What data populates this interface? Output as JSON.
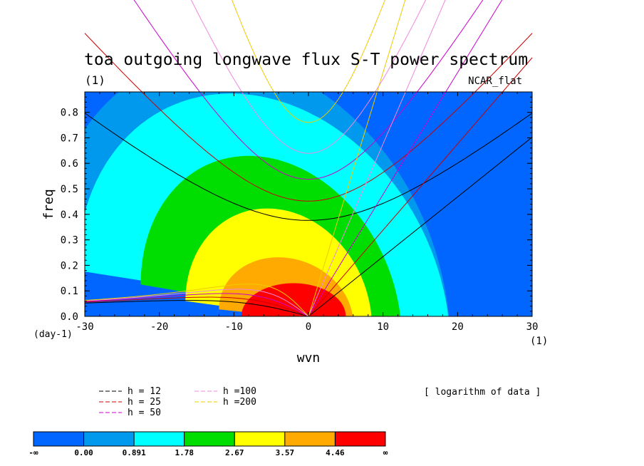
{
  "chart_data": {
    "type": "heatmap",
    "title": "toa outgoing longwave flux S-T power spectrum",
    "title_units": "(1)",
    "subtitle": "NCAR_flat",
    "xlabel": "wvn",
    "ylabel": "freq",
    "x_units": "(1)",
    "y_units": "(day-1)",
    "xlim": [
      -30,
      30
    ],
    "ylim": [
      0,
      0.88
    ],
    "x_ticks": [
      -30,
      -20,
      -10,
      0,
      10,
      20,
      30
    ],
    "x_tick_labels": [
      "-30",
      "-20",
      "-10",
      "0",
      "10",
      "20",
      "30"
    ],
    "y_ticks": [
      0.0,
      0.1,
      0.2,
      0.3,
      0.4,
      0.5,
      0.6,
      0.7,
      0.8
    ],
    "y_tick_labels": [
      "0.0",
      "0.1",
      "0.2",
      "0.3",
      "0.4",
      "0.5",
      "0.6",
      "0.7",
      "0.8"
    ],
    "colorbar": {
      "note": "[ logarithm of data ]",
      "labels": [
        "-∞",
        "0.00",
        "0.891",
        "1.78",
        "2.67",
        "3.57",
        "4.46",
        "∞"
      ],
      "colors": [
        "#0066ff",
        "#0099ee",
        "#00ffff",
        "#00dd00",
        "#ffff00",
        "#ffaa00",
        "#ff0000"
      ]
    },
    "contour_regions": [
      {
        "level_index": 1,
        "center": [
          -8,
          0.05
        ],
        "a": 27,
        "b": 0.95,
        "skew": -0.006
      },
      {
        "level_index": 2,
        "center": [
          -6,
          0.03
        ],
        "a": 25,
        "b": 0.83,
        "skew": -0.006
      },
      {
        "level_index": 3,
        "center": [
          -5,
          0.02
        ],
        "a": 17.5,
        "b": 0.6,
        "skew": -0.006
      },
      {
        "level_index": 4,
        "center": [
          -4,
          0.01
        ],
        "a": 12.5,
        "b": 0.41,
        "skew": -0.004
      },
      {
        "level_index": 5,
        "center": [
          -3,
          0.0
        ],
        "a": 9,
        "b": 0.23,
        "skew": -0.003
      },
      {
        "level_index": 6,
        "center": [
          -2,
          0.0
        ],
        "a": 7,
        "b": 0.13,
        "skew": 0
      }
    ],
    "dispersion_curves": {
      "legend": [
        {
          "label": "h = 12",
          "color": "#000000"
        },
        {
          "label": "h = 25",
          "color": "#cc0000"
        },
        {
          "label": "h = 50",
          "color": "#cc00cc"
        },
        {
          "label": "h =100",
          "color": "#ee88dd"
        },
        {
          "label": "h =200",
          "color": "#eecc00"
        }
      ],
      "equivalent_depths": [
        12,
        25,
        50,
        100,
        200
      ]
    }
  }
}
